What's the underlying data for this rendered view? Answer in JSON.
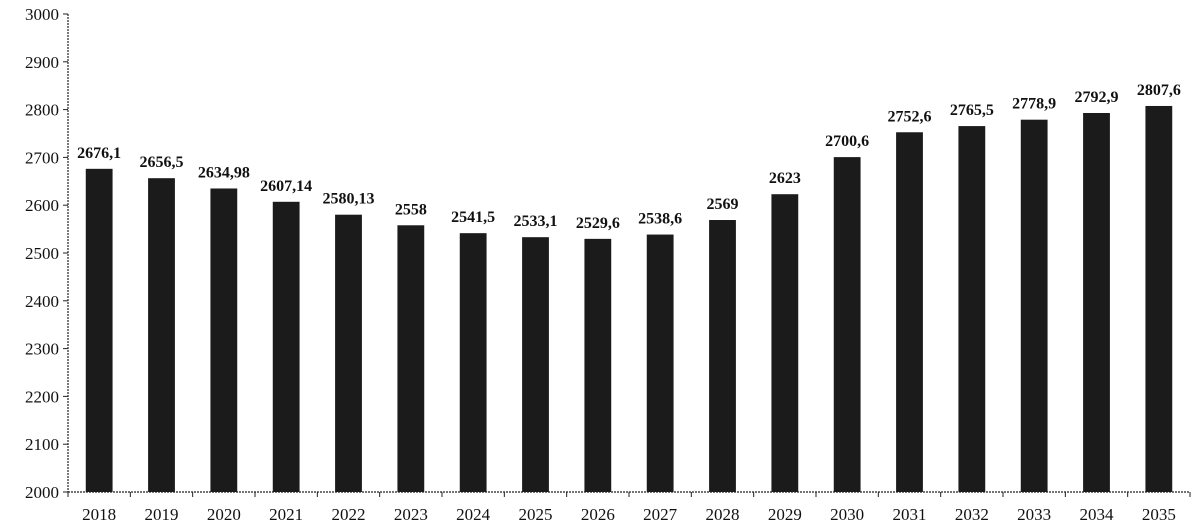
{
  "chart_data": {
    "type": "bar",
    "title": "",
    "xlabel": "",
    "ylabel": "",
    "ylim": [
      2000,
      3000
    ],
    "yticks": [
      "2000",
      "2100",
      "2200",
      "2300",
      "2400",
      "2500",
      "2600",
      "2700",
      "2800",
      "2900",
      "3000"
    ],
    "grid": false,
    "bar_color": "#1b1b1b",
    "categories": [
      "2018",
      "2019",
      "2020",
      "2021",
      "2022",
      "2023",
      "2024",
      "2025",
      "2026",
      "2027",
      "2028",
      "2029",
      "2030",
      "2031",
      "2032",
      "2033",
      "2034",
      "2035"
    ],
    "values": [
      2676.1,
      2656.5,
      2634.98,
      2607.14,
      2580.13,
      2558,
      2541.5,
      2533.1,
      2529.6,
      2538.6,
      2569,
      2623,
      2700.6,
      2752.6,
      2765.5,
      2778.9,
      2792.9,
      2807.6
    ],
    "value_labels": [
      "2676,1",
      "2656,5",
      "2634,98",
      "2607,14",
      "2580,13",
      "2558",
      "2541,5",
      "2533,1",
      "2529,6",
      "2538,6",
      "2569",
      "2623",
      "2700,6",
      "2752,6",
      "2765,5",
      "2778,9",
      "2792,9",
      "2807,6"
    ]
  }
}
